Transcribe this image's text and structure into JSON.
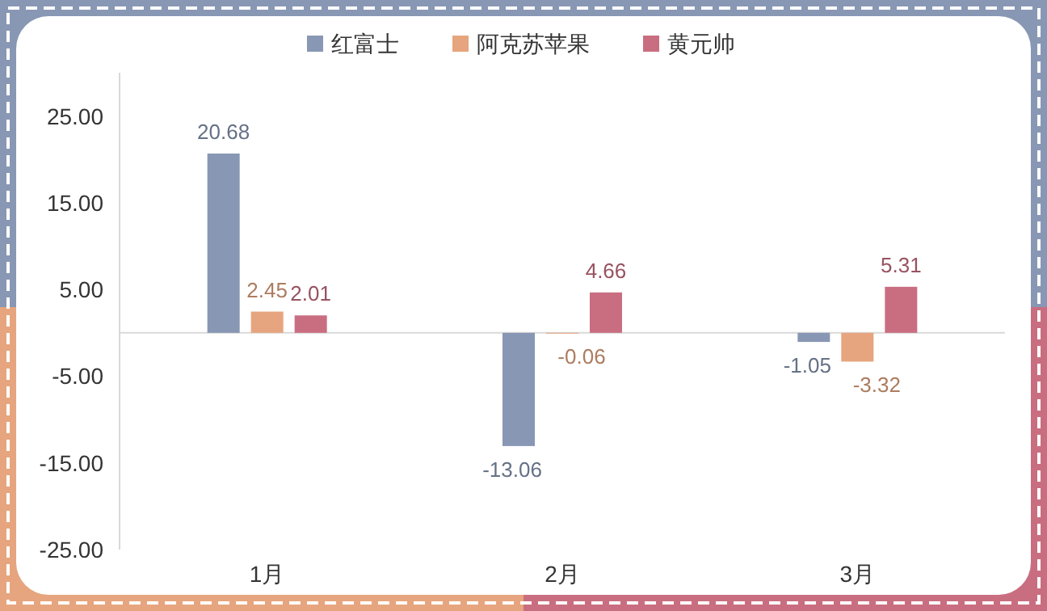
{
  "chart_data": {
    "type": "bar",
    "categories": [
      "1月",
      "2月",
      "3月"
    ],
    "series": [
      {
        "name": "红富士",
        "color": "#8897b3",
        "values": [
          20.68,
          -13.06,
          -1.05
        ]
      },
      {
        "name": "阿克苏苹果",
        "color": "#e6a57e",
        "values": [
          2.45,
          -0.06,
          -3.32
        ]
      },
      {
        "name": "黄元帅",
        "color": "#c96e80",
        "values": [
          2.01,
          4.66,
          5.31
        ]
      }
    ],
    "ylim": [
      -25,
      30
    ],
    "yticks": [
      {
        "value": -25,
        "label": "-25.00"
      },
      {
        "value": -15,
        "label": "-15.00"
      },
      {
        "value": -5,
        "label": "-5.00"
      },
      {
        "value": 5,
        "label": "5.00"
      },
      {
        "value": 15,
        "label": "15.00"
      },
      {
        "value": 25,
        "label": "25.00"
      }
    ],
    "data_labels": true,
    "legend": "top",
    "grid": false
  }
}
